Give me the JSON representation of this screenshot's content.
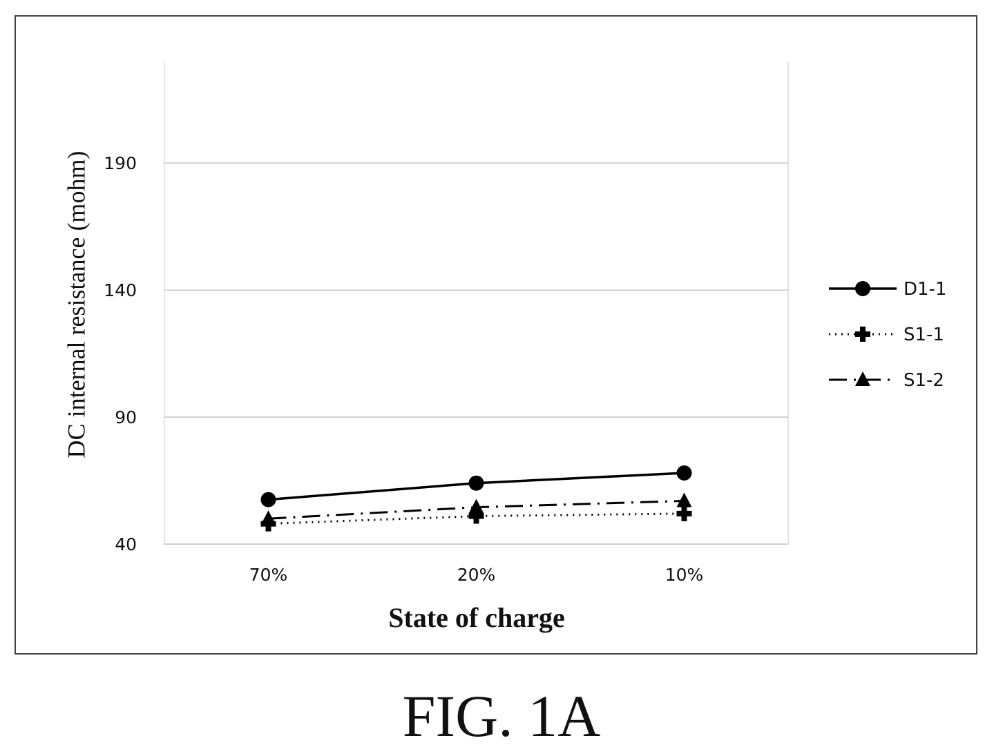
{
  "figure_label": "FIG. 1A",
  "chart_data": {
    "type": "line",
    "categories": [
      "70%",
      "20%",
      "10%"
    ],
    "xlabel": "State of charge",
    "ylabel": "DC internal resistance (mohm)",
    "ylim": [
      40,
      230
    ],
    "yticks": [
      40,
      90,
      140,
      190
    ],
    "grid": true,
    "legend_position": "right",
    "series": [
      {
        "name": "D1-1",
        "values": [
          57.5,
          64,
          68
        ],
        "line_style": "solid",
        "marker": "circle",
        "color": "#000000"
      },
      {
        "name": "S1-1",
        "values": [
          48,
          51,
          52
        ],
        "line_style": "dotted",
        "marker": "plus",
        "color": "#000000"
      },
      {
        "name": "S1-2",
        "values": [
          50,
          54.5,
          57
        ],
        "line_style": "dash-dot",
        "marker": "triangle",
        "color": "#000000"
      }
    ]
  }
}
